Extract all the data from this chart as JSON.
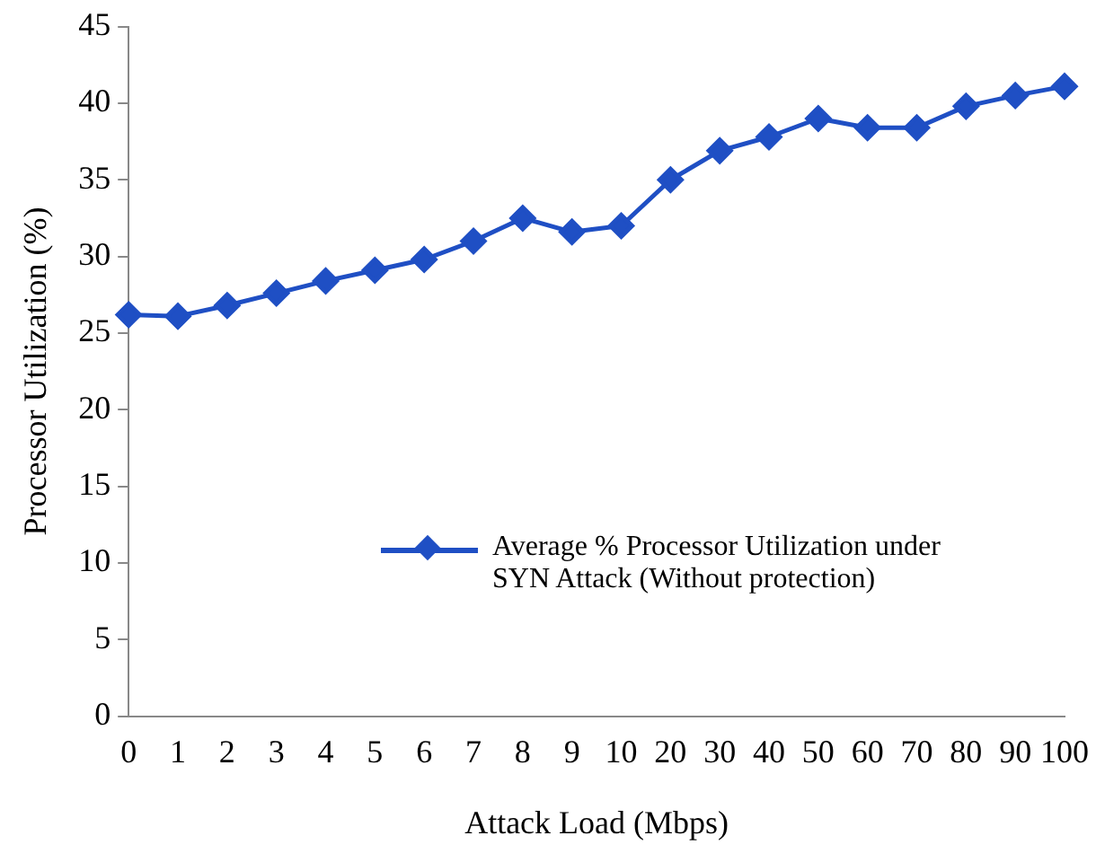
{
  "chart_data": {
    "type": "line",
    "xlabel": "Attack Load (Mbps)",
    "ylabel": "Processor Utilization (%)",
    "categories": [
      "0",
      "1",
      "2",
      "3",
      "4",
      "5",
      "6",
      "7",
      "8",
      "9",
      "10",
      "20",
      "30",
      "40",
      "50",
      "60",
      "70",
      "80",
      "90",
      "100"
    ],
    "series": [
      {
        "name": "Average % Processor Utilization under SYN Attack (Without protection)",
        "color": "#1f4fc4",
        "values": [
          26.2,
          26.1,
          26.8,
          27.6,
          28.4,
          29.1,
          29.8,
          31.0,
          32.5,
          31.6,
          32.0,
          35.0,
          36.9,
          37.8,
          39.0,
          38.4,
          38.4,
          39.8,
          40.5,
          41.1
        ]
      }
    ],
    "ylim": [
      0,
      45
    ],
    "yticks": [
      0,
      5,
      10,
      15,
      20,
      25,
      30,
      35,
      40,
      45
    ],
    "grid": false,
    "legend": "right",
    "marker": "diamond",
    "line_style": "solid"
  }
}
